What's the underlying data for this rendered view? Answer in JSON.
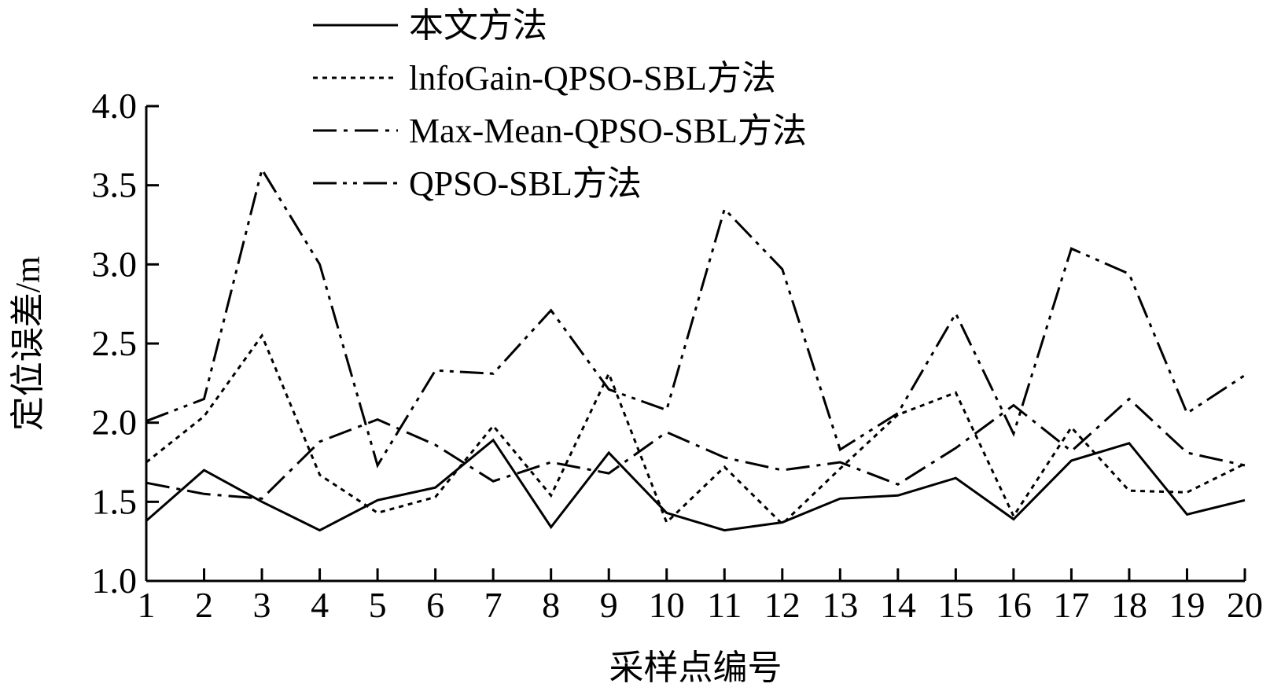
{
  "chart_data": {
    "type": "line",
    "title": "",
    "xlabel": "采样点编号",
    "ylabel": "定位误差/m",
    "xlim": [
      1,
      20
    ],
    "ylim": [
      1.0,
      4.0
    ],
    "x": [
      1,
      2,
      3,
      4,
      5,
      6,
      7,
      8,
      9,
      10,
      11,
      12,
      13,
      14,
      15,
      16,
      17,
      18,
      19,
      20
    ],
    "x_tick_labels": [
      "1",
      "2",
      "3",
      "4",
      "5",
      "6",
      "7",
      "8",
      "9",
      "10",
      "11",
      "12",
      "13",
      "14",
      "15",
      "16",
      "17",
      "18",
      "19",
      "20"
    ],
    "y_ticks": [
      1.0,
      1.5,
      2.0,
      2.5,
      3.0,
      3.5,
      4.0
    ],
    "y_tick_labels": [
      "1.0",
      "1.5",
      "2.0",
      "2.5",
      "3.0",
      "3.5",
      "4.0"
    ],
    "grid": false,
    "legend_position": "top",
    "series": [
      {
        "name": "本文方法",
        "line_style": "solid",
        "values": [
          1.38,
          1.7,
          1.5,
          1.32,
          1.51,
          1.59,
          1.89,
          1.34,
          1.81,
          1.43,
          1.32,
          1.37,
          1.52,
          1.54,
          1.65,
          1.39,
          1.76,
          1.87,
          1.42,
          1.51
        ]
      },
      {
        "name": "lnfoGain-QPSO-SBL方法",
        "line_style": "dotted",
        "values": [
          1.75,
          2.04,
          2.55,
          1.67,
          1.43,
          1.53,
          1.98,
          1.54,
          2.31,
          1.37,
          1.72,
          1.36,
          1.71,
          2.05,
          2.19,
          1.41,
          1.97,
          1.57,
          1.56,
          1.74
        ]
      },
      {
        "name": "Max-Mean-QPSO-SBL方法",
        "line_style": "dashdot",
        "values": [
          1.62,
          1.55,
          1.52,
          1.88,
          2.02,
          1.86,
          1.63,
          1.75,
          1.68,
          1.94,
          1.78,
          1.7,
          1.75,
          1.61,
          1.84,
          2.11,
          1.82,
          2.15,
          1.81,
          1.73
        ]
      },
      {
        "name": "QPSO-SBL方法",
        "line_style": "dashdotdot",
        "values": [
          2.01,
          2.15,
          3.6,
          3.0,
          1.73,
          2.33,
          2.31,
          2.71,
          2.21,
          2.08,
          3.35,
          2.97,
          1.83,
          2.06,
          2.69,
          1.93,
          3.1,
          2.94,
          2.06,
          2.3
        ]
      }
    ]
  }
}
